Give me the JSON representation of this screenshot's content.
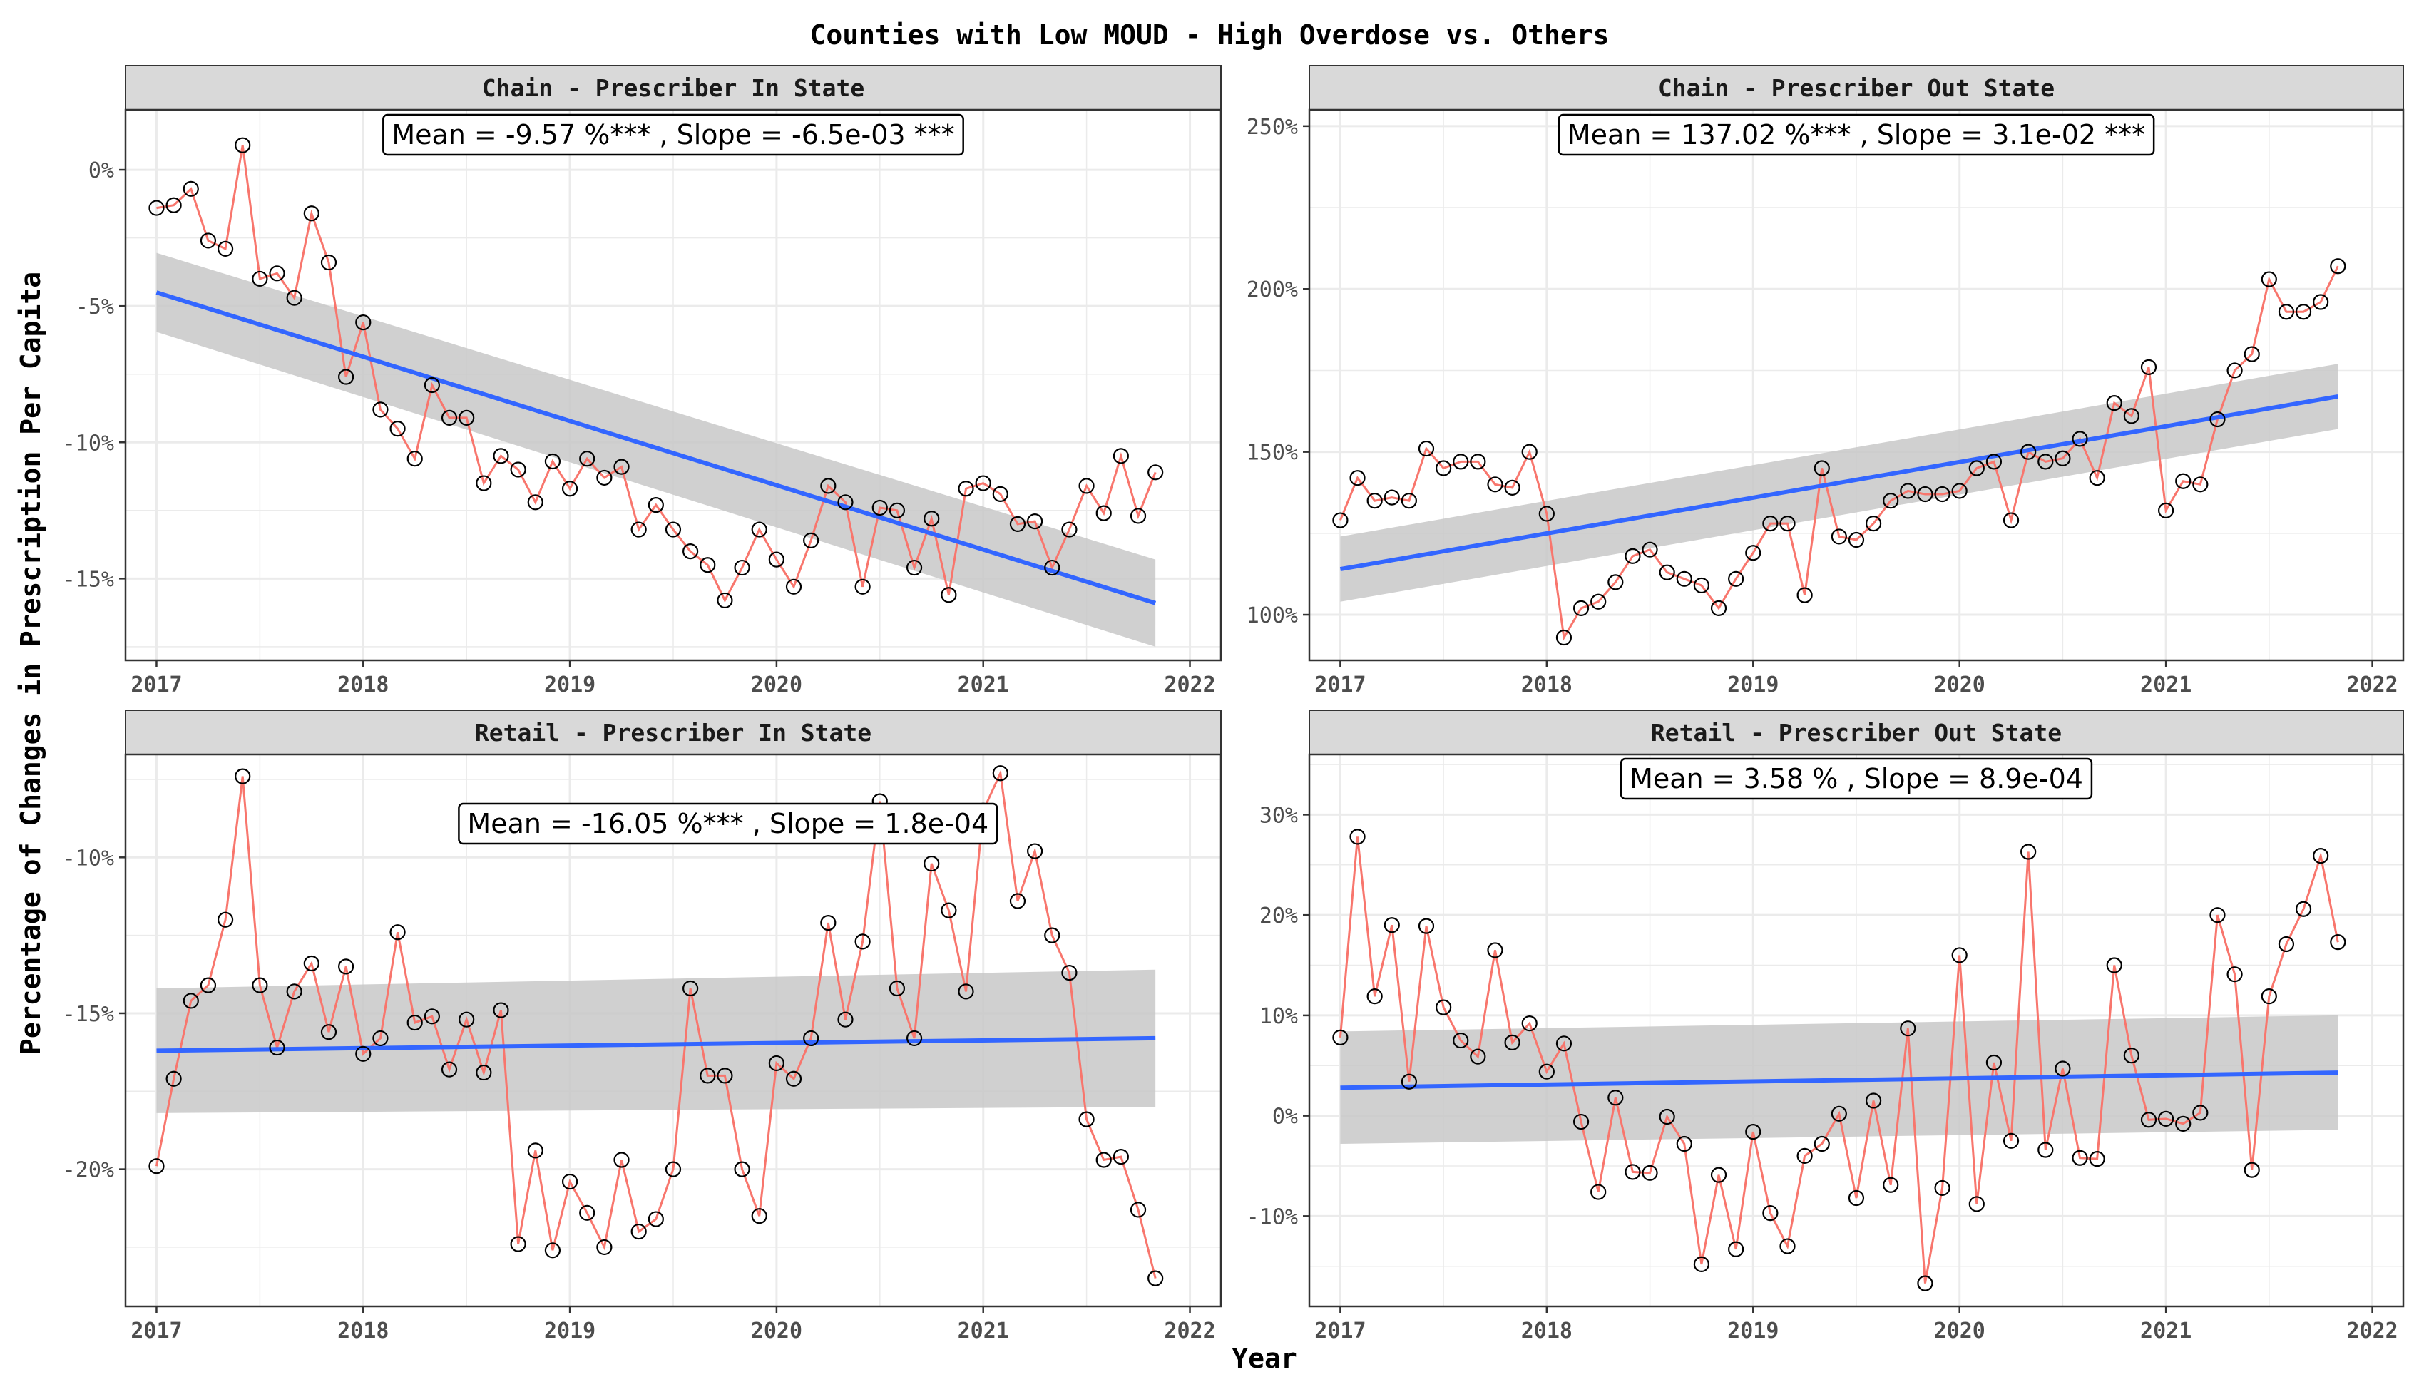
{
  "title": "Counties with Low MOUD - High Overdose vs. Others",
  "xlabel": "Year",
  "ylabel": "Percentage of Changes in Prescription Per Capita",
  "colors": {
    "line": "#f8766d",
    "trend": "#3366ff",
    "band": "#c8c8c8",
    "strip": "#d9d9d9",
    "grid": "#ebebeb",
    "text": "#000000",
    "tick_text": "#4d4d4d"
  },
  "chart_data": [
    {
      "type": "line",
      "panel": "Chain - Prescriber In State",
      "annotation": "Mean = -9.57 %*** , Slope = -6.5e-03 ***",
      "xlim": [
        2016.85,
        2022.15
      ],
      "ylim": [
        -18.0,
        2.2
      ],
      "xticks": [
        2017,
        2018,
        2019,
        2020,
        2021,
        2022
      ],
      "xtick_labels": [
        "2017",
        "2018",
        "2019",
        "2020",
        "2021",
        "2022"
      ],
      "yticks": [
        0,
        -5,
        -10,
        -15
      ],
      "ytick_labels": [
        "0%",
        "-5%",
        "-10%",
        "-15%"
      ],
      "x_start": 2017,
      "x_step": 0.08333,
      "months": 59,
      "values": [
        -1.4,
        -1.3,
        -0.7,
        -2.6,
        -2.9,
        0.9,
        -4.0,
        -3.8,
        -4.7,
        -1.6,
        -3.4,
        -7.6,
        -5.6,
        -8.8,
        -9.5,
        -10.6,
        -7.9,
        -9.1,
        -9.1,
        -11.5,
        -10.5,
        -11.0,
        -12.2,
        -10.7,
        -11.7,
        -10.6,
        -11.3,
        -10.9,
        -13.2,
        -12.3,
        -13.2,
        -14.0,
        -14.5,
        -15.8,
        -14.6,
        -13.2,
        -14.3,
        -15.3,
        -13.6,
        -11.6,
        -12.2,
        -15.3,
        -12.4,
        -12.5,
        -14.6,
        -12.8,
        -15.6,
        -11.7,
        -11.5,
        -11.9,
        -13.0,
        -12.9,
        -14.6,
        -13.2,
        -11.6,
        -12.6,
        -10.5,
        -12.7,
        -11.1
      ],
      "trend": {
        "start": -4.5,
        "end": -15.9,
        "ci_start": 1.45,
        "ci_end": 1.6
      }
    },
    {
      "type": "line",
      "panel": "Chain - Prescriber Out State",
      "annotation": "Mean = 137.02 %*** , Slope = 3.1e-02 ***",
      "xlim": [
        2016.85,
        2022.15
      ],
      "ylim": [
        86,
        255
      ],
      "xticks": [
        2017,
        2018,
        2019,
        2020,
        2021,
        2022
      ],
      "xtick_labels": [
        "2017",
        "2018",
        "2019",
        "2020",
        "2021",
        "2022"
      ],
      "yticks": [
        100,
        150,
        200,
        250
      ],
      "ytick_labels": [
        "100%",
        "150%",
        "200%",
        "250%"
      ],
      "x_start": 2017,
      "x_step": 0.08333,
      "months": 59,
      "values": [
        129,
        142,
        135,
        136,
        135,
        151,
        145,
        147,
        147,
        140,
        139,
        150,
        131,
        93,
        102,
        104,
        110,
        118,
        120,
        113,
        111,
        109,
        102,
        111,
        119,
        128,
        128,
        106,
        145,
        124,
        123,
        128,
        135,
        138,
        137,
        137,
        138,
        145,
        147,
        129,
        150,
        147,
        148,
        154,
        142,
        165,
        161,
        176,
        132,
        141,
        140,
        160,
        175,
        180,
        203,
        193,
        193,
        196,
        207
      ],
      "trend": {
        "start": 114,
        "end": 167,
        "ci_start": 10,
        "ci_end": 10
      }
    },
    {
      "type": "line",
      "panel": "Retail - Prescriber In State",
      "annotation": "Mean = -16.05 %*** , Slope = 1.8e-04",
      "xlim": [
        2016.85,
        2022.15
      ],
      "ylim": [
        -24.4,
        -6.7
      ],
      "xticks": [
        2017,
        2018,
        2019,
        2020,
        2021,
        2022
      ],
      "xtick_labels": [
        "2017",
        "2018",
        "2019",
        "2020",
        "2021",
        "2022"
      ],
      "yticks": [
        -10,
        -15,
        -20
      ],
      "ytick_labels": [
        "-10%",
        "-15%",
        "-20%"
      ],
      "x_start": 2017,
      "x_step": 0.08333,
      "months": 59,
      "values": [
        -19.9,
        -17.1,
        -14.6,
        -14.1,
        -12.0,
        -7.4,
        -14.1,
        -16.1,
        -14.3,
        -13.4,
        -15.6,
        -13.5,
        -16.3,
        -15.8,
        -12.4,
        -15.3,
        -15.1,
        -16.8,
        -15.2,
        -16.9,
        -14.9,
        -22.4,
        -19.4,
        -22.6,
        -20.4,
        -21.4,
        -22.5,
        -19.7,
        -22.0,
        -21.6,
        -20.0,
        -14.2,
        -17.0,
        -17.0,
        -20.0,
        -21.5,
        -16.6,
        -17.1,
        -15.8,
        -12.1,
        -15.2,
        -12.7,
        -8.2,
        -14.2,
        -15.8,
        -10.2,
        -11.7,
        -14.3,
        -8.5,
        -7.3,
        -11.4,
        -9.8,
        -12.5,
        -13.7,
        -18.4,
        -19.7,
        -19.6,
        -21.3,
        -23.5
      ],
      "trend": {
        "start": -16.2,
        "end": -15.8,
        "ci_start": 2.0,
        "ci_end": 2.2
      }
    },
    {
      "type": "line",
      "panel": "Retail - Prescriber Out State",
      "annotation": "Mean = 3.58 % , Slope = 8.9e-04",
      "xlim": [
        2016.85,
        2022.15
      ],
      "ylim": [
        -19,
        36
      ],
      "xticks": [
        2017,
        2018,
        2019,
        2020,
        2021,
        2022
      ],
      "xtick_labels": [
        "2017",
        "2018",
        "2019",
        "2020",
        "2021",
        "2022"
      ],
      "yticks": [
        30,
        20,
        10,
        0,
        -10
      ],
      "ytick_labels": [
        "30%",
        "20%",
        "10%",
        "0%",
        "-10%"
      ],
      "x_start": 2017,
      "x_step": 0.08333,
      "months": 59,
      "values": [
        7.8,
        27.8,
        11.9,
        19.0,
        3.4,
        18.9,
        10.8,
        7.5,
        5.9,
        16.5,
        7.3,
        9.2,
        4.4,
        7.2,
        -0.6,
        -7.6,
        1.8,
        -5.6,
        -5.7,
        -0.1,
        -2.8,
        -14.8,
        -5.9,
        -13.3,
        -1.6,
        -9.7,
        -13.0,
        -4.0,
        -2.8,
        0.2,
        -8.2,
        1.5,
        -6.9,
        8.7,
        -16.7,
        -7.2,
        16.0,
        -8.8,
        5.3,
        -2.5,
        26.3,
        -3.4,
        4.7,
        -4.2,
        -4.3,
        15.0,
        6.0,
        -0.4,
        -0.3,
        -0.8,
        0.3,
        20.0,
        14.1,
        -5.4,
        11.9,
        17.1,
        20.6,
        25.9,
        17.3
      ],
      "trend": {
        "start": 2.8,
        "end": 4.3,
        "ci_start": 5.6,
        "ci_end": 5.7
      }
    }
  ]
}
